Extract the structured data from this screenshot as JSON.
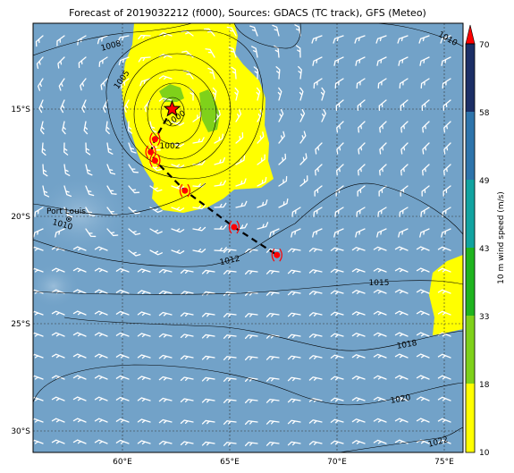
{
  "title": "Forecast of 2019032212 (f000), Sources: GDACS (TC track), GFS (Meteo)",
  "map": {
    "lat_ticks": [
      "15°S",
      "20°S",
      "25°S",
      "30°S"
    ],
    "lon_ticks": [
      "60°E",
      "65°E",
      "70°E",
      "75°E"
    ],
    "lon_range": [
      55.9,
      76.0
    ],
    "lat_range": [
      -11.0,
      -31.0
    ],
    "place_label": "Port Louis",
    "isobars": [
      "1000",
      "1002",
      "1005",
      "1008",
      "1010",
      "1010",
      "1012",
      "1015",
      "1018",
      "1020",
      "1022"
    ]
  },
  "track": {
    "current_position": {
      "lon": 62.4,
      "lat": -15.0
    },
    "forecast_points": [
      {
        "lon": 61.6,
        "lat": -16.4
      },
      {
        "lon": 61.4,
        "lat": -17.0
      },
      {
        "lon": 61.6,
        "lat": -17.4
      },
      {
        "lon": 63.0,
        "lat": -18.8
      },
      {
        "lon": 65.3,
        "lat": -20.5
      },
      {
        "lon": 67.3,
        "lat": -21.8
      }
    ]
  },
  "colorbar": {
    "label": "10 m wind speed (m/s)",
    "ticks": [
      "10",
      "18",
      "33",
      "43",
      "49",
      "58",
      "70"
    ],
    "colors": {
      "10": "#ffff00",
      "18": "#7fd11a",
      "33": "#1fb41f",
      "43": "#12a3a0",
      "49": "#2e74ab",
      "58": "#1c2f66",
      "70": "#ff0000"
    }
  },
  "colors": {
    "sea": "#72a2c8",
    "strong_wind": "#ffff00",
    "core_green": "#7fd11a"
  }
}
